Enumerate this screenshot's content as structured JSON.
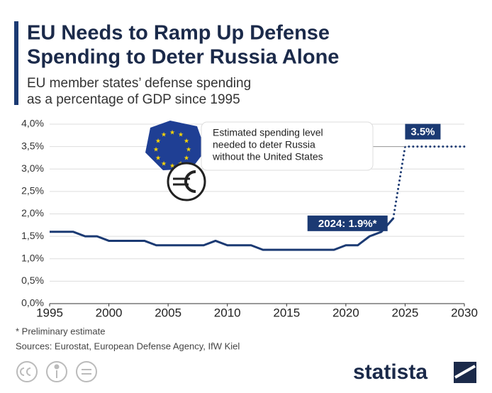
{
  "chart_data": {
    "type": "line",
    "title": [
      "EU Needs to Ramp Up Defense",
      "Spending to Deter Russia Alone"
    ],
    "subtitle": [
      "EU member states’ defense spending",
      "as a percentage of GDP since 1995"
    ],
    "x": [
      1995,
      1996,
      1997,
      1998,
      1999,
      2000,
      2001,
      2002,
      2003,
      2004,
      2005,
      2006,
      2007,
      2008,
      2009,
      2010,
      2011,
      2012,
      2013,
      2014,
      2015,
      2016,
      2017,
      2018,
      2019,
      2020,
      2021,
      2022,
      2023,
      2024,
      2025,
      2026,
      2027,
      2028,
      2029,
      2030
    ],
    "series": [
      {
        "color": "#1b3a73",
        "style": "solid",
        "values": [
          1.6,
          1.6,
          1.6,
          1.5,
          1.5,
          1.4,
          1.4,
          1.4,
          1.4,
          1.3,
          1.3,
          1.3,
          1.3,
          1.3,
          1.4,
          1.3,
          1.3,
          1.3,
          1.2,
          1.2,
          1.2,
          1.2,
          1.2,
          1.2,
          1.2,
          1.3,
          1.3,
          1.5,
          1.6,
          1.9,
          null,
          null,
          null,
          null,
          null,
          null
        ],
        "value_labels": [
          null,
          null,
          null,
          null,
          null,
          null,
          null,
          null,
          null,
          null,
          null,
          null,
          null,
          null,
          null,
          null,
          null,
          null,
          null,
          null,
          null,
          null,
          null,
          null,
          null,
          null,
          null,
          null,
          null,
          "2024: 1.9%*",
          null,
          null,
          null,
          null,
          null,
          null
        ]
      },
      {
        "color": "#1b3a73",
        "style": "dotted",
        "values": [
          null,
          null,
          null,
          null,
          null,
          null,
          null,
          null,
          null,
          null,
          null,
          null,
          null,
          null,
          null,
          null,
          null,
          null,
          null,
          null,
          null,
          null,
          null,
          null,
          null,
          null,
          null,
          null,
          null,
          1.9,
          3.5,
          3.5,
          3.5,
          3.5,
          3.5,
          3.5
        ],
        "value_labels": [
          null,
          null,
          null,
          null,
          null,
          null,
          null,
          null,
          null,
          null,
          null,
          null,
          null,
          null,
          null,
          null,
          null,
          null,
          null,
          null,
          null,
          null,
          null,
          null,
          null,
          null,
          null,
          null,
          null,
          null,
          "3.5%",
          null,
          null,
          null,
          null,
          null
        ]
      }
    ],
    "annotation": [
      "Estimated spending level",
      "needed to deter Russia",
      "without the United States"
    ],
    "xlim": [
      1995,
      2030
    ],
    "xticks": [
      1995,
      2000,
      2005,
      2010,
      2015,
      2020,
      2025,
      2030
    ],
    "ylim": [
      0,
      4
    ],
    "yticks": [
      {
        "value": 0,
        "label": "0,0%"
      },
      {
        "value": 0.5,
        "label": "0,5%"
      },
      {
        "value": 1,
        "label": "1,0%"
      },
      {
        "value": 1.5,
        "label": "1,5%"
      },
      {
        "value": 2,
        "label": "2,0%"
      },
      {
        "value": 2.5,
        "label": "2,5%"
      },
      {
        "value": 3,
        "label": "3,0%"
      },
      {
        "value": 3.5,
        "label": "3,5%"
      },
      {
        "value": 4,
        "label": "4,0%"
      }
    ],
    "grid": true,
    "footnote": "* Preliminary estimate",
    "source": "Sources: Eurostat, European Defense Agency, IfW Kiel",
    "brand": "statista"
  }
}
